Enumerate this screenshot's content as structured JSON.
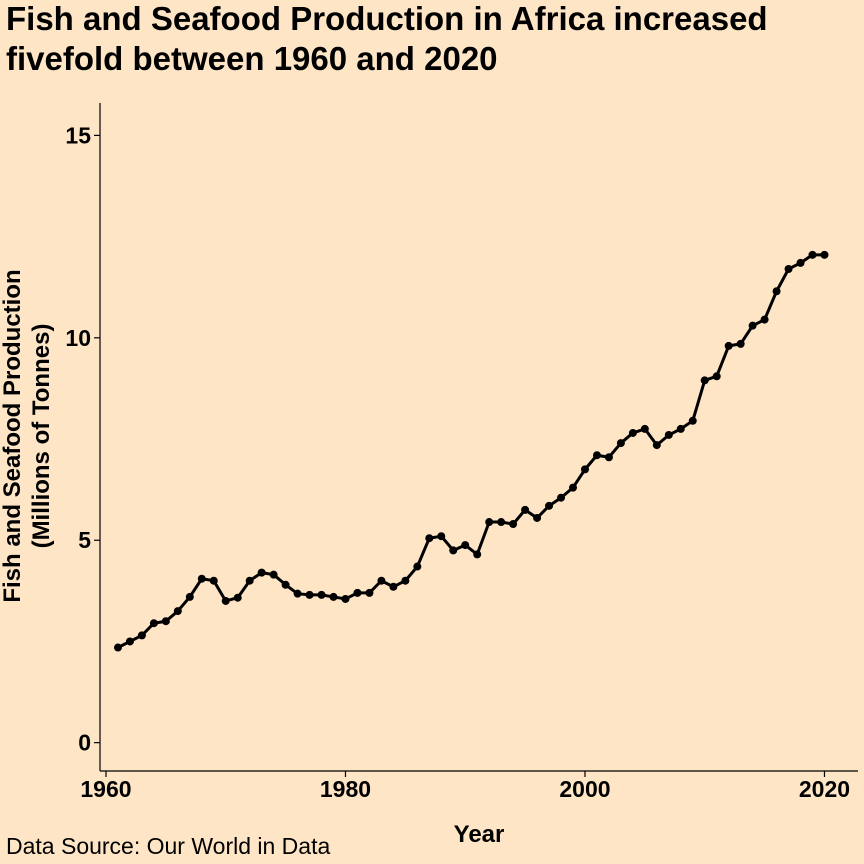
{
  "chart_data": {
    "type": "line",
    "title": [
      "Fish and Seafood Production in Africa increased",
      "fivefold between 1960 and 2020"
    ],
    "xlabel": "Year",
    "ylabel": [
      "Fish and Seafood Production",
      "(Millions of Tonnes)"
    ],
    "caption": "Data Source: Our World in Data",
    "xlim": [
      1959.5,
      2022.8
    ],
    "ylim": [
      -0.7,
      15.8
    ],
    "x_ticks": [
      1960,
      1980,
      2000,
      2020
    ],
    "y_ticks": [
      0,
      5,
      10,
      15
    ],
    "grid": false,
    "line_color": "#000000",
    "background": "#FEE5C6",
    "series": [
      {
        "x": [
          1961,
          1962,
          1963,
          1964,
          1965,
          1966,
          1967,
          1968,
          1969,
          1970,
          1971,
          1972,
          1973,
          1974,
          1975,
          1976,
          1977,
          1978,
          1979,
          1980,
          1981,
          1982,
          1983,
          1984,
          1985,
          1986,
          1987,
          1988,
          1989,
          1990,
          1991,
          1992,
          1993,
          1994,
          1995,
          1996,
          1997,
          1998,
          1999,
          2000,
          2001,
          2002,
          2003,
          2004,
          2005,
          2006,
          2007,
          2008,
          2009,
          2010,
          2011,
          2012,
          2013,
          2014,
          2015,
          2016,
          2017,
          2018,
          2019,
          2020
        ],
        "values": [
          2.35,
          2.5,
          2.65,
          2.95,
          3.0,
          3.25,
          3.6,
          4.05,
          4.0,
          3.5,
          3.58,
          4.0,
          4.2,
          4.15,
          3.9,
          3.68,
          3.65,
          3.65,
          3.6,
          3.55,
          3.7,
          3.7,
          4.0,
          3.85,
          4.0,
          4.35,
          5.05,
          5.1,
          4.75,
          4.88,
          4.65,
          5.45,
          5.45,
          5.4,
          5.75,
          5.55,
          5.85,
          6.05,
          6.3,
          6.75,
          7.1,
          7.05,
          7.4,
          7.65,
          7.75,
          7.35,
          7.6,
          7.75,
          7.95,
          8.95,
          9.05,
          9.8,
          9.85,
          10.3,
          10.45,
          11.15,
          11.7,
          11.85,
          12.05,
          12.05
        ]
      }
    ]
  }
}
